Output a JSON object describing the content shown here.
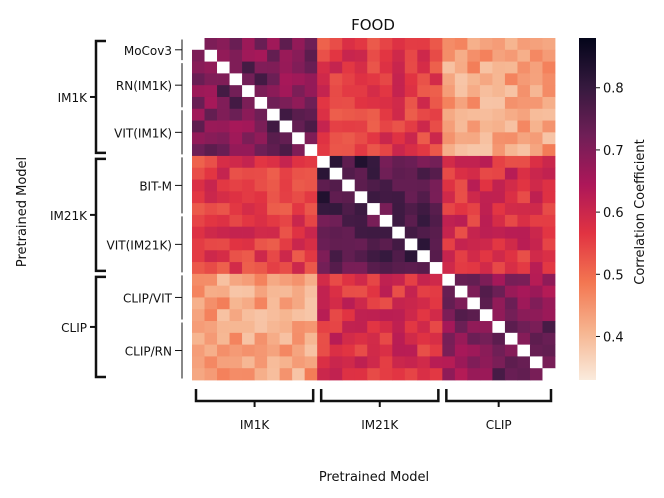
{
  "chart_data": {
    "type": "heatmap",
    "title": "FOOD",
    "xlabel": "Pretrained Model",
    "ylabel": "Pretrained Model",
    "colorbar": {
      "label": "Correlation Coefficient",
      "ticks": [
        0.4,
        0.5,
        0.6,
        0.7,
        0.8
      ],
      "tick_labels": [
        "0.4",
        "0.5",
        "0.6",
        "0.7",
        "0.8"
      ],
      "range": [
        0.33,
        0.88
      ],
      "colormap": "rocket_r",
      "colors": [
        "#faebdd",
        "#f6b48f",
        "#f37651",
        "#e13342",
        "#ad1759",
        "#701f57",
        "#35193e",
        "#03051a"
      ]
    },
    "diagonal_color": "#ffffff",
    "groups": [
      {
        "name": "IM1K",
        "start": 0,
        "end": 9,
        "subgroups": [
          {
            "name": "MoCov3",
            "start": 0,
            "end": 1
          },
          {
            "name": "RN(IM1K)",
            "start": 2,
            "end": 5
          },
          {
            "name": "VIT(IM1K)",
            "start": 6,
            "end": 9
          }
        ]
      },
      {
        "name": "IM21K",
        "start": 10,
        "end": 19,
        "subgroups": [
          {
            "name": "BIT-M",
            "start": 10,
            "end": 14
          },
          {
            "name": "VIT(IM21K)",
            "start": 15,
            "end": 19
          }
        ]
      },
      {
        "name": "CLIP",
        "start": 20,
        "end": 28,
        "subgroups": [
          {
            "name": "CLIP/VIT",
            "start": 20,
            "end": 23
          },
          {
            "name": "CLIP/RN",
            "start": 24,
            "end": 28
          }
        ]
      }
    ],
    "n_models": 29,
    "block_means": [
      [
        0.7,
        0.56,
        0.43
      ],
      [
        0.56,
        0.74,
        0.58
      ],
      [
        0.43,
        0.58,
        0.68
      ]
    ],
    "within_block_range": [
      -0.05,
      0.05
    ],
    "max_value": 0.87
  }
}
